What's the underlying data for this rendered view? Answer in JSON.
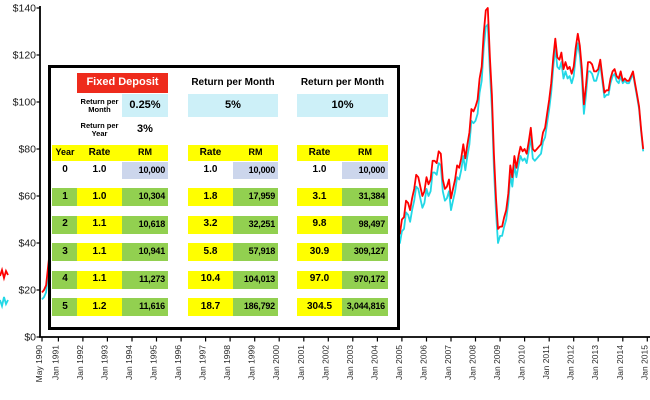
{
  "chart_data": {
    "type": "line",
    "title": "",
    "xlabel": "",
    "ylabel": "",
    "ylim": [
      0,
      140
    ],
    "x_frequency": "monthly",
    "x_start": "May 1990",
    "x_tick_labels": [
      "May 1990",
      "Jan 1991",
      "Jan 1992",
      "Jan 1993",
      "Jan 1994",
      "Jan 1995",
      "Jan 1996",
      "Jan 1997",
      "Jan 1998",
      "Jan 1999",
      "Jan 2000",
      "Jan 2001",
      "Jan 2002",
      "Jan 2003",
      "Jan 2004",
      "Jan 2005",
      "Jan 2006",
      "Jan 2007",
      "Jan 2008",
      "Jan 2009",
      "Jan 2010",
      "Jan 2011",
      "Jan 2012",
      "Jan 2013",
      "Jan 2014",
      "Jan 2015"
    ],
    "y_tick_labels": [
      "$0",
      "$20",
      "$40",
      "$60",
      "$80",
      "$100",
      "$120",
      "$140"
    ],
    "grid": false,
    "legend_position": "left-edge-cut-off",
    "series": [
      {
        "name": "cyan-line",
        "color": "#22d8e6",
        "values": [
          16,
          17,
          19,
          27,
          35,
          36,
          32,
          27,
          23,
          20,
          19,
          19,
          19,
          18,
          19,
          20,
          20,
          22,
          21,
          18,
          18,
          18,
          17,
          19,
          20,
          21,
          21,
          20,
          21,
          20,
          19,
          18,
          18,
          18,
          19,
          19,
          18,
          18,
          17,
          17,
          16,
          17,
          15,
          14,
          14,
          14,
          14,
          15,
          16,
          17,
          18,
          17,
          16,
          17,
          17,
          17,
          17,
          17,
          17,
          19,
          18,
          18,
          16,
          17,
          17,
          16,
          17,
          18,
          18,
          18,
          20,
          21,
          19,
          19,
          20,
          21,
          23,
          24,
          23,
          24,
          23,
          21,
          19,
          18,
          19,
          18,
          18,
          19,
          19,
          20,
          19,
          17,
          15,
          14,
          13,
          14,
          14,
          12,
          12,
          12,
          13,
          13,
          11,
          10,
          11,
          10,
          13,
          15,
          15,
          16,
          19,
          21,
          23,
          22,
          25,
          26,
          26,
          27,
          28,
          23,
          28,
          30,
          28,
          30,
          32,
          31,
          33,
          26,
          26,
          28,
          25,
          26,
          28,
          28,
          25,
          26,
          26,
          20,
          19,
          19,
          19,
          20,
          24,
          26,
          26,
          24,
          26,
          27,
          28,
          28,
          24,
          28,
          31,
          33,
          31,
          25,
          26,
          28,
          28,
          30,
          27,
          30,
          29,
          30,
          31,
          31,
          34,
          33,
          38,
          35,
          38,
          43,
          43,
          50,
          43,
          40,
          45,
          46,
          53,
          52,
          49,
          54,
          58,
          64,
          63,
          59,
          55,
          57,
          63,
          60,
          62,
          70,
          70,
          69,
          74,
          73,
          62,
          58,
          59,
          62,
          54,
          58,
          62,
          68,
          67,
          71,
          77,
          71,
          77,
          82,
          92,
          91,
          92,
          95,
          104,
          109,
          123,
          132,
          133,
          113,
          97,
          72,
          53,
          40,
          43,
          43,
          47,
          50,
          57,
          69,
          64,
          73,
          68,
          73,
          77,
          75,
          76,
          74,
          79,
          85,
          76,
          75,
          76,
          77,
          78,
          83,
          85,
          91,
          97,
          104,
          115,
          123,
          115,
          114,
          117,
          110,
          113,
          110,
          111,
          108,
          111,
          119,
          125,
          120,
          110,
          95,
          103,
          113,
          113,
          112,
          109,
          109,
          112,
          116,
          109,
          102,
          103,
          103,
          108,
          111,
          112,
          109,
          108,
          111,
          108,
          109,
          108,
          108,
          110,
          112,
          107,
          102,
          97,
          87,
          79
        ]
      },
      {
        "name": "red-line",
        "color": "#fe0000",
        "values": [
          19,
          20,
          22,
          30,
          38,
          39,
          35,
          30,
          26,
          23,
          22,
          22,
          22,
          21,
          22,
          23,
          23,
          25,
          24,
          21,
          21,
          21,
          20,
          22,
          23,
          24,
          24,
          23,
          24,
          23,
          22,
          21,
          21,
          21,
          22,
          22,
          21,
          21,
          20,
          20,
          19,
          20,
          18,
          17,
          17,
          17,
          17,
          18,
          19,
          20,
          21,
          20,
          19,
          20,
          20,
          20,
          20,
          20,
          20,
          22,
          21,
          21,
          19,
          20,
          20,
          19,
          20,
          21,
          21,
          21,
          23,
          24,
          22,
          22,
          23,
          24,
          26,
          27,
          26,
          27,
          26,
          24,
          22,
          21,
          22,
          21,
          21,
          22,
          22,
          23,
          22,
          20,
          18,
          17,
          16,
          17,
          17,
          15,
          15,
          15,
          16,
          16,
          14,
          13,
          14,
          13,
          16,
          18,
          18,
          19,
          22,
          24,
          26,
          25,
          28,
          29,
          30,
          31,
          32,
          27,
          32,
          34,
          32,
          34,
          36,
          35,
          37,
          30,
          30,
          32,
          29,
          30,
          32,
          32,
          29,
          30,
          30,
          24,
          23,
          23,
          23,
          24,
          28,
          30,
          30,
          28,
          30,
          31,
          32,
          32,
          28,
          32,
          35,
          37,
          35,
          29,
          30,
          32,
          32,
          34,
          31,
          34,
          33,
          34,
          35,
          35,
          38,
          37,
          42,
          39,
          42,
          47,
          47,
          54,
          47,
          44,
          50,
          51,
          58,
          57,
          54,
          59,
          63,
          69,
          68,
          64,
          60,
          62,
          68,
          65,
          67,
          75,
          75,
          74,
          79,
          78,
          67,
          63,
          64,
          67,
          59,
          63,
          67,
          73,
          72,
          76,
          82,
          76,
          82,
          87,
          97,
          96,
          98,
          101,
          110,
          115,
          129,
          139,
          140,
          119,
          103,
          78,
          59,
          46,
          47,
          47,
          51,
          54,
          61,
          73,
          68,
          77,
          72,
          77,
          81,
          79,
          80,
          78,
          83,
          89,
          80,
          79,
          80,
          81,
          82,
          87,
          89,
          95,
          101,
          108,
          119,
          127,
          119,
          118,
          121,
          114,
          117,
          114,
          115,
          112,
          115,
          123,
          129,
          124,
          114,
          99,
          107,
          117,
          117,
          116,
          113,
          113,
          114,
          118,
          111,
          104,
          105,
          105,
          110,
          113,
          114,
          111,
          110,
          113,
          109,
          110,
          109,
          109,
          111,
          113,
          108,
          103,
          98,
          88,
          80
        ]
      }
    ]
  },
  "table": {
    "col_year": "Year",
    "col_rate": "Rate",
    "col_rm": "RM",
    "groups": [
      {
        "title": "Fixed Deposit",
        "sub_rows": [
          {
            "label": "Return per Month",
            "value": "0.25%"
          },
          {
            "label": "Return per Year",
            "value": "3%"
          }
        ]
      },
      {
        "title": "Return per Month",
        "rate": "5%"
      },
      {
        "title": "Return per Month",
        "rate": "10%"
      }
    ],
    "rows": [
      {
        "year": "0",
        "values": [
          [
            "1.0",
            "10,000"
          ],
          [
            "1.0",
            "10,000"
          ],
          [
            "1.0",
            "10,000"
          ]
        ]
      },
      {
        "year": "1",
        "values": [
          [
            "1.0",
            "10,304"
          ],
          [
            "1.8",
            "17,959"
          ],
          [
            "3.1",
            "31,384"
          ]
        ]
      },
      {
        "year": "2",
        "values": [
          [
            "1.1",
            "10,618"
          ],
          [
            "3.2",
            "32,251"
          ],
          [
            "9.8",
            "98,497"
          ]
        ]
      },
      {
        "year": "3",
        "values": [
          [
            "1.1",
            "10,941"
          ],
          [
            "5.8",
            "57,918"
          ],
          [
            "30.9",
            "309,127"
          ]
        ]
      },
      {
        "year": "4",
        "values": [
          [
            "1.1",
            "11,273"
          ],
          [
            "10.4",
            "104,013"
          ],
          [
            "97.0",
            "970,172"
          ]
        ]
      },
      {
        "year": "5",
        "values": [
          [
            "1.2",
            "11,616"
          ],
          [
            "18.7",
            "186,792"
          ],
          [
            "304.5",
            "3,044,816"
          ]
        ]
      }
    ]
  }
}
